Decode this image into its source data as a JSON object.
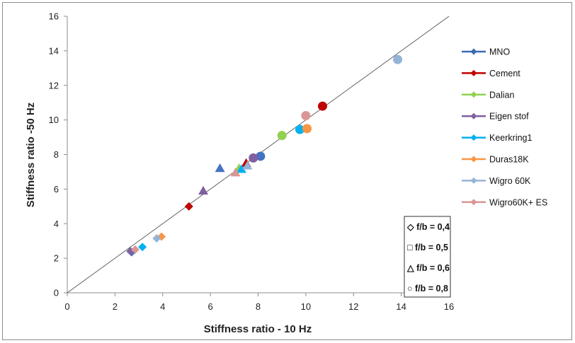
{
  "chart_data": {
    "type": "scatter",
    "xlabel": "Stiffness ratio - 10 Hz",
    "ylabel": "Stiffness ratio -50 Hz",
    "xlim": [
      0,
      16
    ],
    "ylim": [
      0,
      16
    ],
    "x_ticks": [
      0,
      2,
      4,
      6,
      8,
      10,
      12,
      14,
      16
    ],
    "y_ticks": [
      0,
      2,
      4,
      6,
      8,
      10,
      12,
      14,
      16
    ],
    "grid": false,
    "reference_line": {
      "from": [
        0,
        0
      ],
      "to": [
        16,
        16
      ]
    },
    "legend_position": "right",
    "series": [
      {
        "name": "MNO",
        "color": "#4472C4",
        "legend_color": "#3A6BB0",
        "points": [
          {
            "x": 2.7,
            "y": 2.35,
            "shape": "diamond"
          },
          {
            "x": 6.4,
            "y": 7.2,
            "shape": "triangle"
          },
          {
            "x": 8.1,
            "y": 7.9,
            "shape": "circle"
          }
        ]
      },
      {
        "name": "Cement",
        "color": "#C00000",
        "legend_color": "#C00000",
        "points": [
          {
            "x": 5.1,
            "y": 5.0,
            "shape": "diamond"
          },
          {
            "x": 7.5,
            "y": 7.5,
            "shape": "triangle"
          },
          {
            "x": 10.7,
            "y": 10.8,
            "shape": "circle"
          }
        ]
      },
      {
        "name": "Dalian",
        "color": "#92D050",
        "legend_color": "#92D050",
        "points": [
          {
            "x": 7.2,
            "y": 7.2,
            "shape": "triangle"
          },
          {
            "x": 9.0,
            "y": 9.1,
            "shape": "circle"
          }
        ]
      },
      {
        "name": "Eigen stof",
        "color": "#7F60A0",
        "legend_color": "#7F60A0",
        "points": [
          {
            "x": 2.65,
            "y": 2.4,
            "shape": "diamond"
          },
          {
            "x": 5.7,
            "y": 5.9,
            "shape": "triangle"
          },
          {
            "x": 7.8,
            "y": 7.8,
            "shape": "circle"
          }
        ]
      },
      {
        "name": "Keerkring1",
        "color": "#00B0F0",
        "legend_color": "#00B0F0",
        "points": [
          {
            "x": 3.15,
            "y": 2.65,
            "shape": "diamond"
          },
          {
            "x": 7.3,
            "y": 7.15,
            "shape": "triangle"
          },
          {
            "x": 9.75,
            "y": 9.45,
            "shape": "circle"
          }
        ]
      },
      {
        "name": "Duras18K",
        "color": "#F79646",
        "legend_color": "#F79646",
        "points": [
          {
            "x": 3.95,
            "y": 3.25,
            "shape": "diamond"
          },
          {
            "x": 10.05,
            "y": 9.5,
            "shape": "circle"
          }
        ]
      },
      {
        "name": "Wigro 60K",
        "color": "#95B3D7",
        "legend_color": "#95B3D7",
        "points": [
          {
            "x": 3.75,
            "y": 3.15,
            "shape": "diamond"
          },
          {
            "x": 7.55,
            "y": 7.35,
            "shape": "triangle"
          },
          {
            "x": 13.85,
            "y": 13.5,
            "shape": "circle"
          }
        ]
      },
      {
        "name": "Wigro60K+ ES",
        "color": "#DA9694",
        "legend_color": "#DA9694",
        "points": [
          {
            "x": 2.85,
            "y": 2.5,
            "shape": "diamond"
          },
          {
            "x": 7.05,
            "y": 6.95,
            "shape": "triangle"
          },
          {
            "x": 10.0,
            "y": 10.25,
            "shape": "circle"
          }
        ]
      }
    ],
    "shape_legend": [
      {
        "symbol": "◇",
        "label": "f/b = 0,4"
      },
      {
        "symbol": "□",
        "label": "f/b = 0,5"
      },
      {
        "symbol": "△",
        "label": "f/b = 0,6"
      },
      {
        "symbol": "○",
        "label": "f/b = 0,8"
      }
    ]
  }
}
